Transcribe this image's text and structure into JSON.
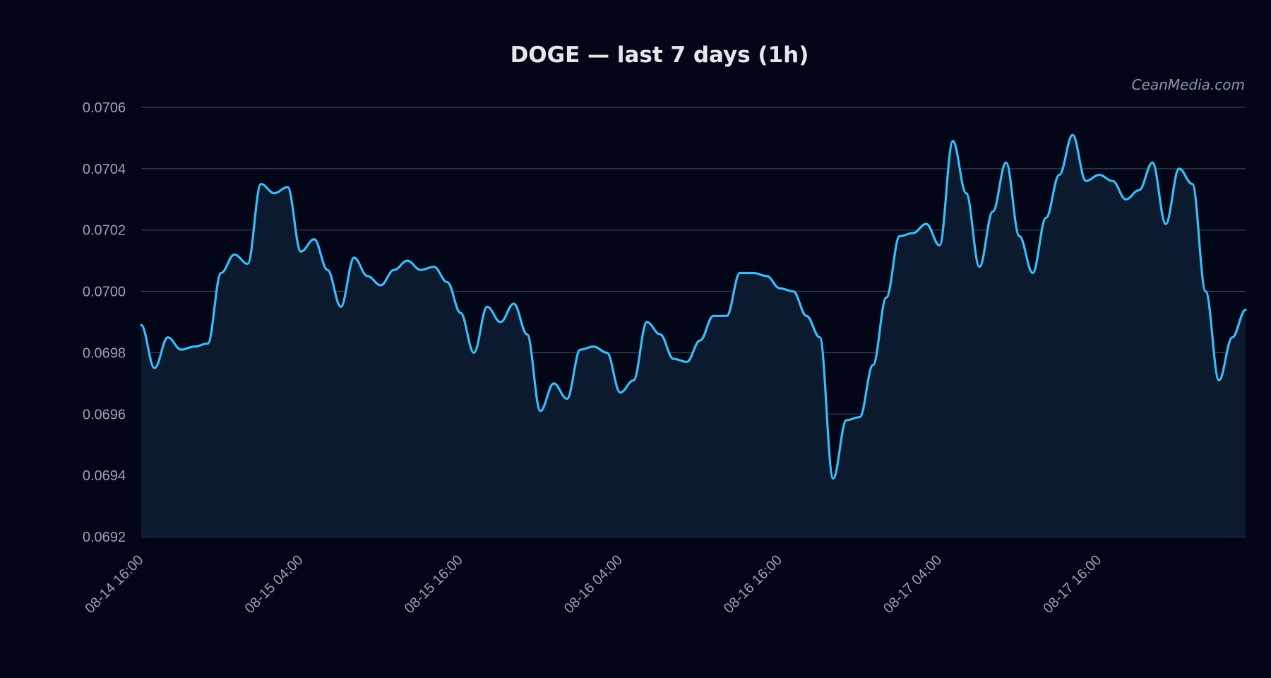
{
  "chart_data": {
    "type": "area",
    "title": "DOGE — last 7 days (1h)",
    "watermark": "CeanMedia.com",
    "xlabel": "",
    "ylabel": "",
    "ylim": [
      0.0692,
      0.0706
    ],
    "yticks": [
      "0.0692",
      "0.0694",
      "0.0696",
      "0.0698",
      "0.0700",
      "0.0702",
      "0.0704",
      "0.0706"
    ],
    "grid": true,
    "colors": {
      "background": "#020617",
      "line": "#38bdf8",
      "area": "#0b1a2e",
      "grid": "#334155"
    },
    "xticks": [
      {
        "label": "08-14 16:00",
        "index": 0
      },
      {
        "label": "08-15 04:00",
        "index": 12
      },
      {
        "label": "08-15 16:00",
        "index": 24
      },
      {
        "label": "08-16 04:00",
        "index": 36
      },
      {
        "label": "08-16 16:00",
        "index": 48
      },
      {
        "label": "08-17 04:00",
        "index": 60
      },
      {
        "label": "08-17 16:00",
        "index": 72
      }
    ],
    "series": [
      {
        "values": [
          0.06989,
          0.06975,
          0.06985,
          0.06981,
          0.06982,
          0.06983,
          0.07006,
          0.07012,
          0.07009,
          0.07035,
          0.07032,
          0.07034,
          0.07013,
          0.07017,
          0.07007,
          0.06995,
          0.07011,
          0.07005,
          0.07002,
          0.07007,
          0.0701,
          0.07007,
          0.07008,
          0.07003,
          0.06993,
          0.0698,
          0.06995,
          0.0699,
          0.06996,
          0.06986,
          0.06961,
          0.0697,
          0.06965,
          0.06981,
          0.06982,
          0.0698,
          0.06967,
          0.06971,
          0.0699,
          0.06986,
          0.06978,
          0.06977,
          0.06984,
          0.06992,
          0.06992,
          0.07006,
          0.07006,
          0.07005,
          0.07001,
          0.07,
          0.06992,
          0.06985,
          0.06939,
          0.06958,
          0.06959,
          0.06976,
          0.06998,
          0.07018,
          0.07019,
          0.07022,
          0.07015,
          0.07049,
          0.07032,
          0.07008,
          0.07026,
          0.07042,
          0.07018,
          0.07006,
          0.07024,
          0.07038,
          0.07051,
          0.07036,
          0.07038,
          0.07036,
          0.0703,
          0.07033,
          0.07042,
          0.07022,
          0.0704,
          0.07035,
          0.07,
          0.06971,
          0.06985,
          0.06994
        ]
      }
    ]
  }
}
